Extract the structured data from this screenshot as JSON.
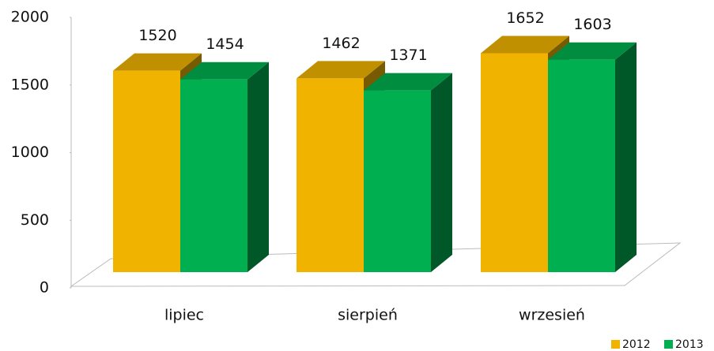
{
  "chart_data": {
    "type": "bar",
    "categories": [
      "lipiec",
      "sierpień",
      "wrzesień"
    ],
    "series": [
      {
        "name": "2012",
        "color": "#f0b400",
        "values": [
          1520,
          1462,
          1652
        ]
      },
      {
        "name": "2013",
        "color": "#00b050",
        "values": [
          1454,
          1371,
          1603
        ]
      }
    ],
    "ylim": [
      0,
      2000
    ],
    "yticks": [
      0,
      500,
      1000,
      1500,
      2000
    ],
    "grid": false,
    "legend": "bottom-right"
  }
}
